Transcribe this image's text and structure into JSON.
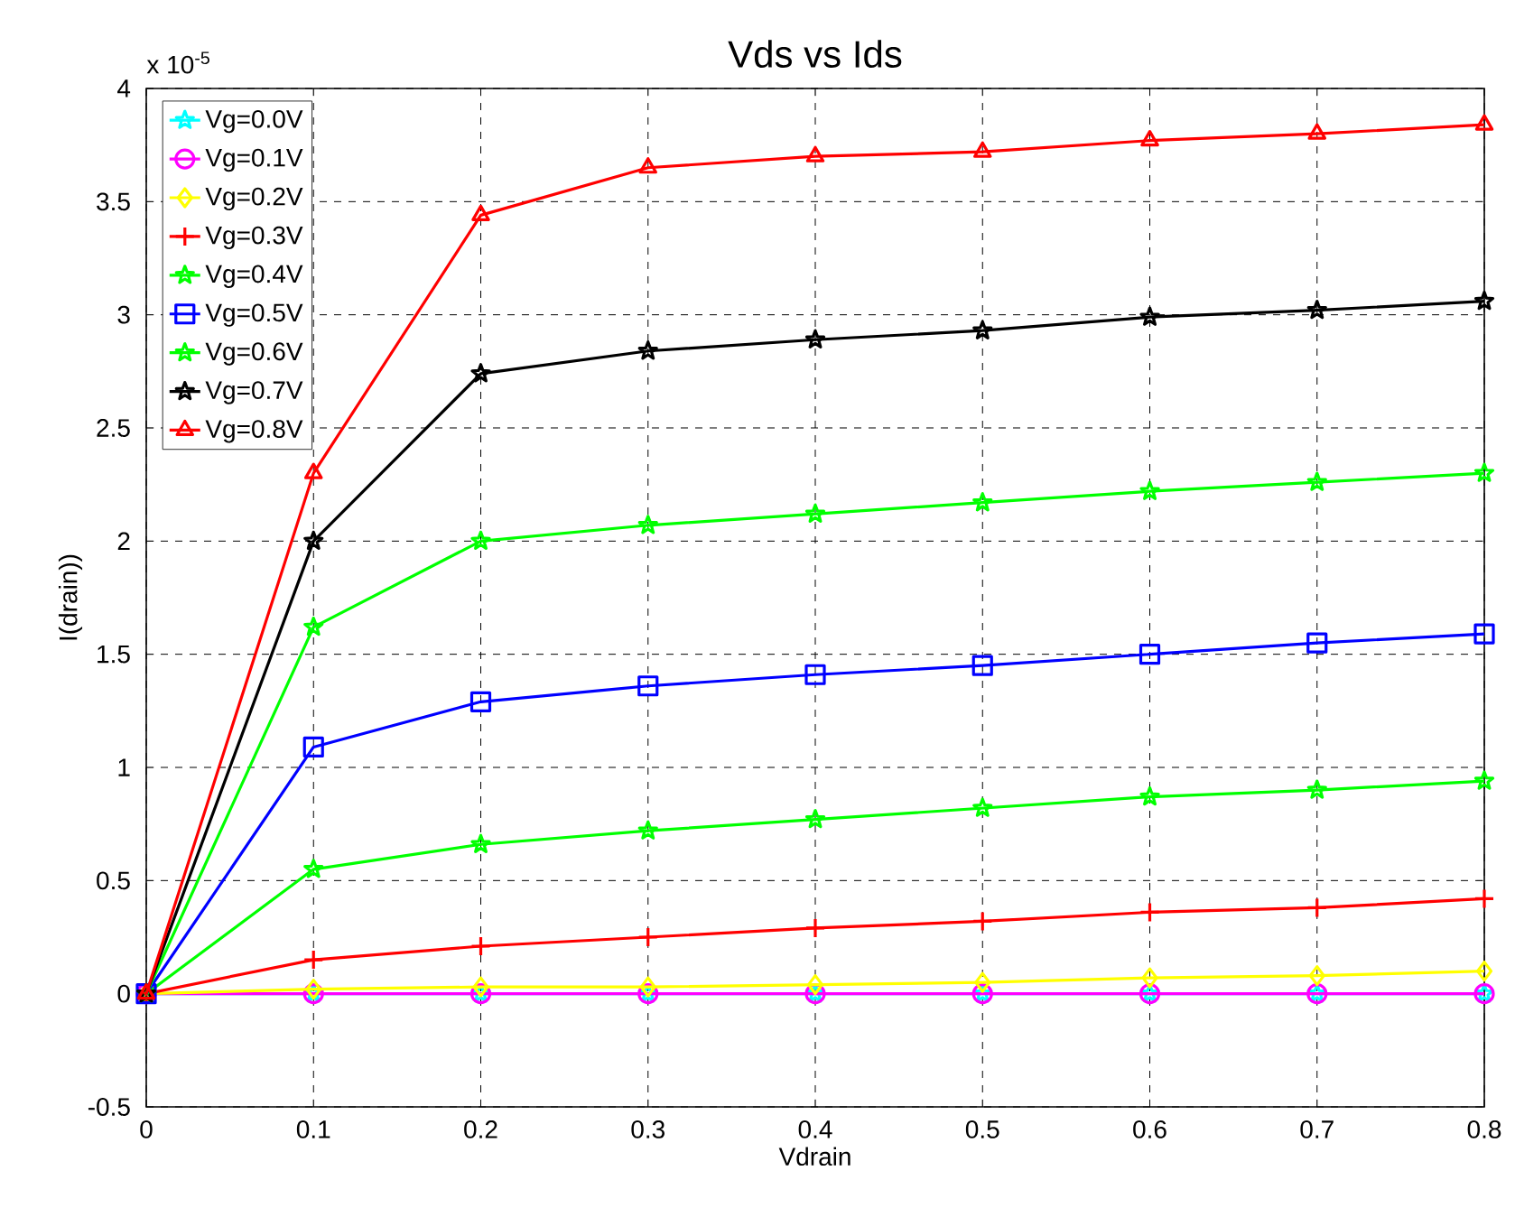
{
  "chart_data": {
    "type": "line",
    "title": "Vds vs Ids",
    "xlabel": "Vdrain",
    "ylabel": "I(drain))",
    "annotations": [
      "x 10$^{-5}$"
    ],
    "x": [
      0,
      0.1,
      0.2,
      0.3,
      0.4,
      0.5,
      0.6,
      0.7,
      0.8
    ],
    "series": [
      {
        "name": "Vg=0.0V",
        "color": "#00ffff",
        "marker": "star",
        "values": [
          0,
          0,
          0,
          0,
          0,
          0,
          0,
          0,
          0
        ]
      },
      {
        "name": "Vg=0.1V",
        "color": "#ff00ff",
        "marker": "circle",
        "values": [
          0,
          0,
          0,
          0,
          0,
          0,
          0,
          0,
          0
        ]
      },
      {
        "name": "Vg=0.2V",
        "color": "#ffff00",
        "marker": "diamond",
        "values": [
          0,
          0.02,
          0.03,
          0.03,
          0.04,
          0.05,
          0.07,
          0.08,
          0.1
        ]
      },
      {
        "name": "Vg=0.3V",
        "color": "#ff0000",
        "marker": "cross",
        "values": [
          0,
          0.15,
          0.21,
          0.25,
          0.29,
          0.32,
          0.36,
          0.38,
          0.42
        ]
      },
      {
        "name": "Vg=0.4V",
        "color": "#00ff00",
        "marker": "star",
        "values": [
          0,
          0.55,
          0.66,
          0.72,
          0.77,
          0.82,
          0.87,
          0.9,
          0.94
        ]
      },
      {
        "name": "Vg=0.5V",
        "color": "#0000ff",
        "marker": "square",
        "values": [
          0,
          1.09,
          1.29,
          1.36,
          1.41,
          1.45,
          1.5,
          1.55,
          1.59
        ]
      },
      {
        "name": "Vg=0.6V",
        "color": "#00ff00",
        "marker": "star",
        "values": [
          0,
          1.62,
          2.0,
          2.07,
          2.12,
          2.17,
          2.22,
          2.26,
          2.3
        ]
      },
      {
        "name": "Vg=0.7V",
        "color": "#000000",
        "marker": "star",
        "values": [
          0,
          2.0,
          2.74,
          2.84,
          2.89,
          2.93,
          2.99,
          3.02,
          3.06
        ]
      },
      {
        "name": "Vg=0.8V",
        "color": "#ff0000",
        "marker": "triangle",
        "values": [
          0,
          2.3,
          3.44,
          3.65,
          3.7,
          3.72,
          3.77,
          3.8,
          3.84
        ]
      }
    ],
    "xlim": [
      0,
      0.8
    ],
    "xticks": [
      0,
      0.1,
      0.2,
      0.3,
      0.4,
      0.5,
      0.6,
      0.7,
      0.8
    ],
    "ylim": [
      -0.5,
      4
    ],
    "yticks": [
      -0.5,
      0,
      0.5,
      1,
      1.5,
      2,
      2.5,
      3,
      3.5,
      4
    ],
    "grid": true,
    "legend": "top left",
    "line_style": "solid"
  }
}
